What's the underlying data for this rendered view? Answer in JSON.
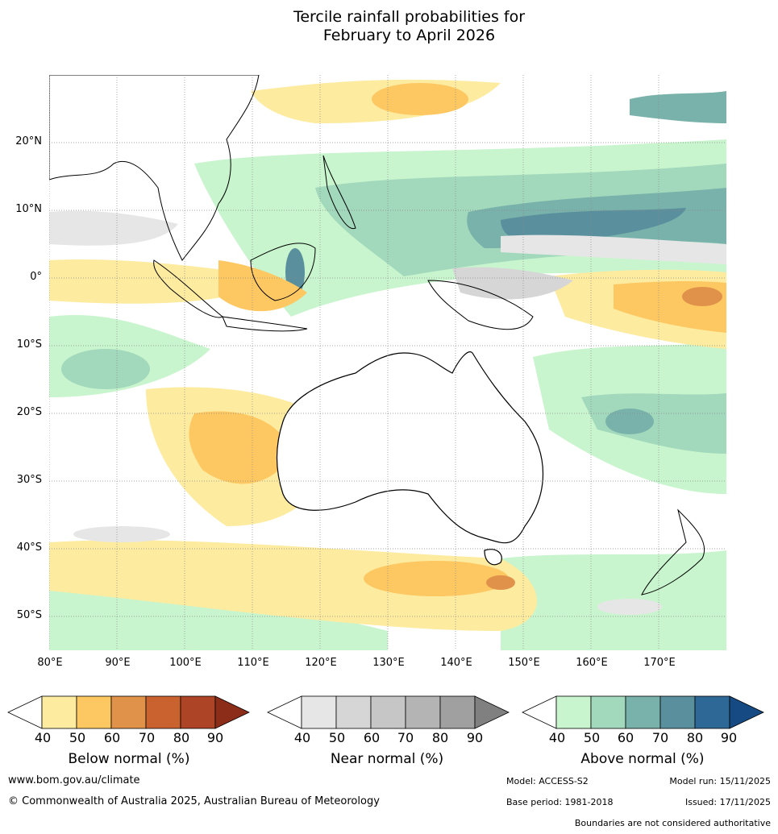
{
  "title_line1": "Tercile rainfall probabilities for",
  "title_line2": "February to April 2026",
  "lat_labels": [
    "20°N",
    "10°N",
    "0°",
    "10°S",
    "20°S",
    "30°S",
    "40°S",
    "50°S"
  ],
  "lon_labels": [
    "80°E",
    "90°E",
    "100°E",
    "110°E",
    "120°E",
    "130°E",
    "140°E",
    "150°E",
    "160°E",
    "170°E"
  ],
  "map_extent": {
    "lon": [
      80,
      180
    ],
    "lat": [
      -55,
      30
    ]
  },
  "legend": {
    "below": {
      "label": "Below normal (%)",
      "ticks": [
        "40",
        "50",
        "60",
        "70",
        "80",
        "90"
      ],
      "colors": [
        "#fdeba0",
        "#fdc862",
        "#e0924a",
        "#c9622e",
        "#ad4425",
        "#8c2d1a"
      ]
    },
    "near": {
      "label": "Near normal (%)",
      "ticks": [
        "40",
        "50",
        "60",
        "70",
        "80",
        "90"
      ],
      "colors": [
        "#e6e6e6",
        "#d6d6d6",
        "#c6c6c6",
        "#b4b4b4",
        "#a0a0a0",
        "#808080"
      ]
    },
    "above": {
      "label": "Above normal (%)",
      "ticks": [
        "40",
        "50",
        "60",
        "70",
        "80",
        "90"
      ],
      "colors": [
        "#c8f5cd",
        "#a2d8bc",
        "#79b2aa",
        "#5a909e",
        "#2e6896",
        "#154a83"
      ]
    }
  },
  "footer": {
    "website": "www.bom.gov.au/climate",
    "copyright": "© Commonwealth of Australia 2025, Australian Bureau of Meteorology",
    "model": "Model: ACCESS-S2",
    "model_run": "Model run: 15/11/2025",
    "base_period": "Base period: 1981-2018",
    "issued": "Issued: 17/11/2025",
    "boundaries_note": "Boundaries are not considered authoritative"
  }
}
